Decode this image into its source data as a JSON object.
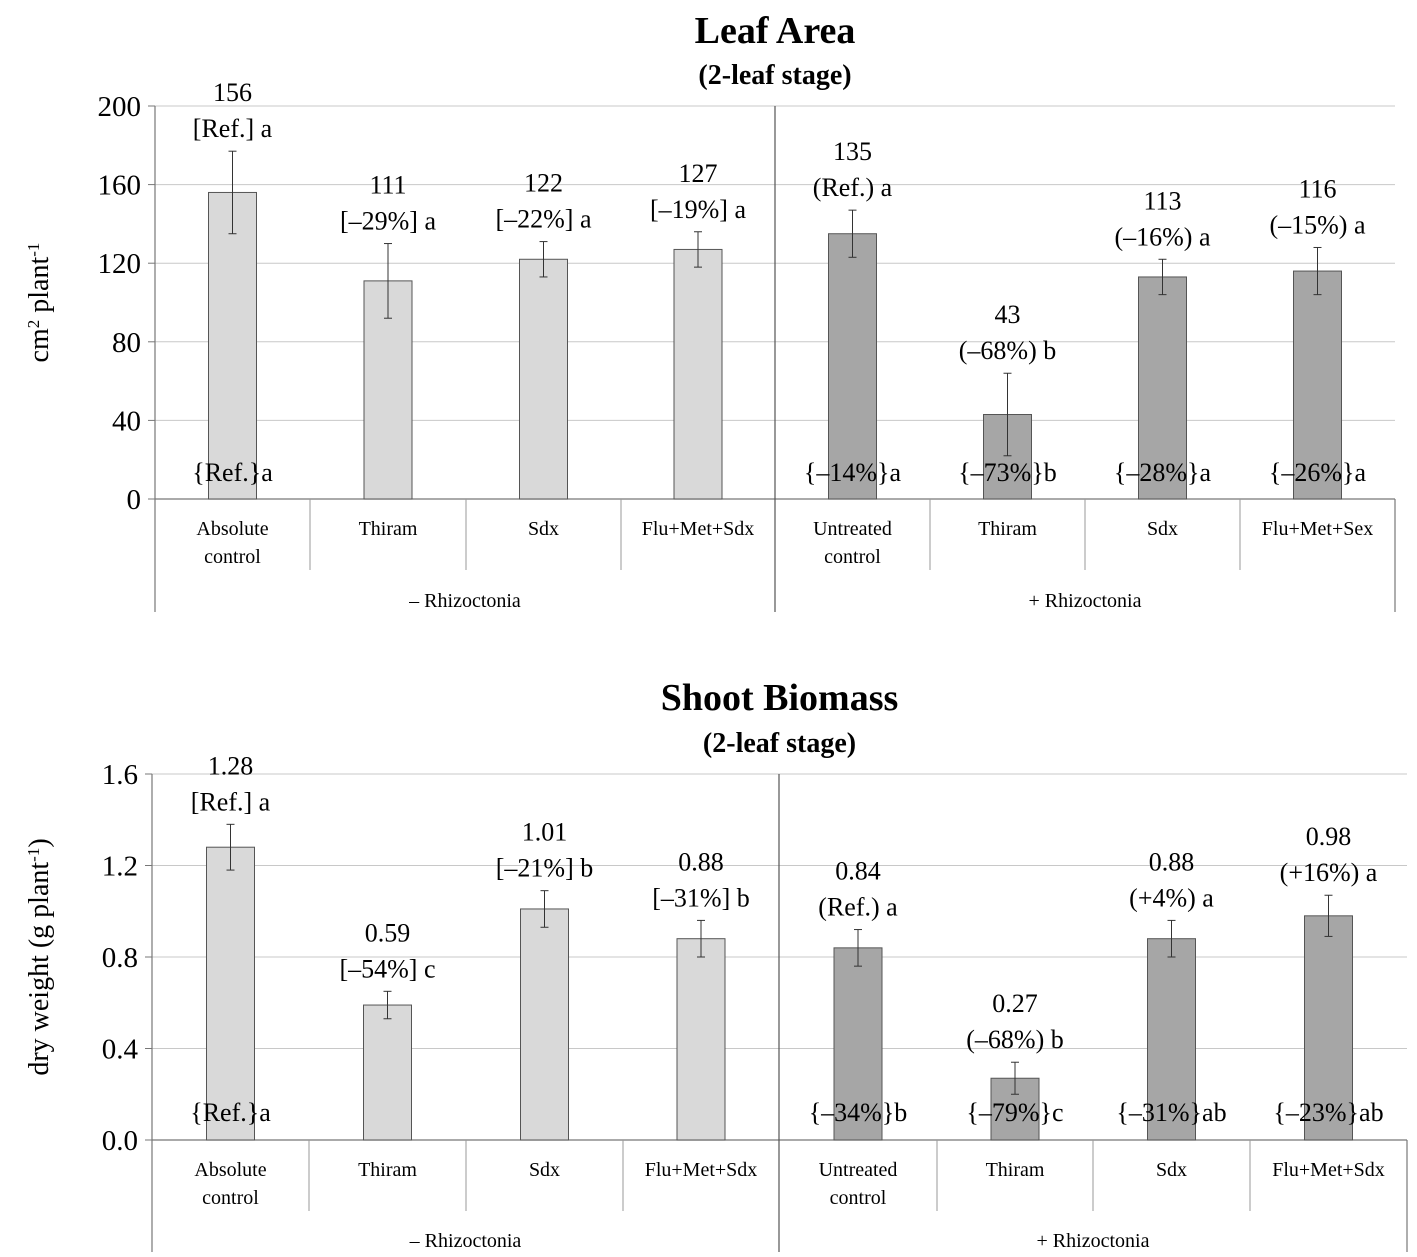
{
  "chart_data": [
    {
      "type": "bar",
      "title": "Leaf Area",
      "subtitle": "(2-leaf stage)",
      "ylabel_main": "cm",
      "ylabel_sup1": "2",
      "ylabel_mid": " plant",
      "ylabel_sup2": "-1",
      "ylim": [
        0,
        200
      ],
      "yticks": [
        "0",
        "40",
        "80",
        "120",
        "160",
        "200"
      ],
      "ytick_values": [
        0,
        40,
        80,
        120,
        160,
        200
      ],
      "grid": true,
      "groups": [
        "– Rhizoctonia",
        "+ Rhizoctonia"
      ],
      "categories": [
        [
          "Absolute",
          "control"
        ],
        [
          "Thiram"
        ],
        [
          "Sdx"
        ],
        [
          "Flu+Met+Sdx"
        ],
        [
          "Untreated",
          "control"
        ],
        [
          "Thiram"
        ],
        [
          "Sdx"
        ],
        [
          "Flu+Met+Sex"
        ]
      ],
      "values": [
        156,
        111,
        122,
        127,
        135,
        43,
        113,
        116
      ],
      "errors": [
        21,
        19,
        9,
        9,
        12,
        21,
        9,
        12
      ],
      "value_labels": [
        "156",
        "111",
        "122",
        "127",
        "135",
        "43",
        "113",
        "116"
      ],
      "change_labels": [
        "[Ref.] a",
        "[–29%] a",
        "[–22%] a",
        "[–19%] a",
        "(Ref.) a",
        "(–68%) b",
        "(–16%) a",
        "(–15%) a"
      ],
      "bottom_labels": [
        "{Ref.}a",
        "{–14%}a",
        "{–73%}b",
        "{–28%}a",
        "{–26%}a"
      ],
      "bottom_label_bars": [
        0,
        4,
        5,
        6,
        7
      ],
      "series_colors": [
        "#d9d9d9",
        "#a6a6a6"
      ]
    },
    {
      "type": "bar",
      "title": "Shoot Biomass",
      "subtitle": "(2-leaf stage)",
      "ylabel_main": "dry weight (g plant",
      "ylabel_sup1": "-1",
      "ylabel_mid": ")",
      "ylabel_sup2": "",
      "ylim": [
        0,
        1.6
      ],
      "yticks": [
        "0.0",
        "0.4",
        "0.8",
        "1.2",
        "1.6"
      ],
      "ytick_values": [
        0,
        0.4,
        0.8,
        1.2,
        1.6
      ],
      "grid": true,
      "groups": [
        "– Rhizoctonia",
        "+ Rhizoctonia"
      ],
      "categories": [
        [
          "Absolute",
          "control"
        ],
        [
          "Thiram"
        ],
        [
          "Sdx"
        ],
        [
          "Flu+Met+Sdx"
        ],
        [
          "Untreated",
          "control"
        ],
        [
          "Thiram"
        ],
        [
          "Sdx"
        ],
        [
          "Flu+Met+Sdx"
        ]
      ],
      "values": [
        1.28,
        0.59,
        1.01,
        0.88,
        0.84,
        0.27,
        0.88,
        0.98
      ],
      "errors": [
        0.1,
        0.06,
        0.08,
        0.08,
        0.08,
        0.07,
        0.08,
        0.09
      ],
      "value_labels": [
        "1.28",
        "0.59",
        "1.01",
        "0.88",
        "0.84",
        "0.27",
        "0.88",
        "0.98"
      ],
      "change_labels": [
        "[Ref.] a",
        "[–54%] c",
        "[–21%] b",
        "[–31%] b",
        "(Ref.) a",
        "(–68%) b",
        "(+4%) a",
        "(+16%) a"
      ],
      "bottom_labels": [
        "{Ref.}a",
        "{–34%}b",
        "{–79%}c",
        "{–31%}ab",
        "{–23%}ab"
      ],
      "bottom_label_bars": [
        0,
        4,
        5,
        6,
        7
      ],
      "series_colors": [
        "#d9d9d9",
        "#a6a6a6"
      ]
    }
  ]
}
